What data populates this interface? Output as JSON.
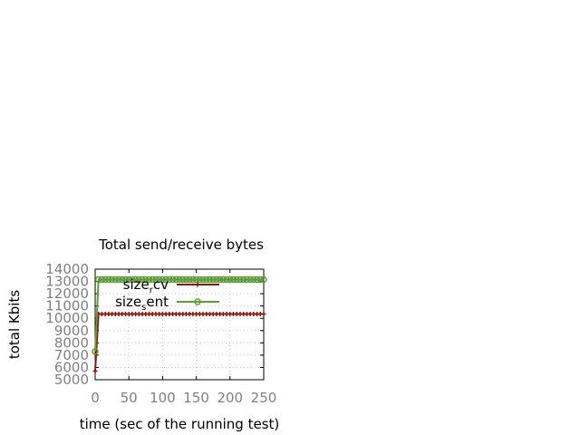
{
  "chart_data": {
    "type": "line",
    "title": "Total send/receive bytes",
    "xlabel": "time (sec of the running test)",
    "ylabel": "total Kbits",
    "xlim": [
      0,
      250
    ],
    "ylim": [
      5000,
      14000
    ],
    "xticks": [
      0,
      50,
      100,
      150,
      200,
      250
    ],
    "yticks": [
      5000,
      6000,
      7000,
      8000,
      9000,
      10000,
      11000,
      12000,
      13000,
      14000
    ],
    "grid": true,
    "legend_position": "top-right",
    "series": [
      {
        "name_main": "size",
        "name_sub": "r",
        "name_rest": "cv",
        "color": "#8b1a0e",
        "marker": "plus",
        "x": [
          0,
          5,
          10,
          15,
          20,
          25,
          30,
          35,
          40,
          45,
          50,
          55,
          60,
          65,
          70,
          75,
          80,
          85,
          90,
          95,
          100,
          105,
          110,
          115,
          120,
          125,
          130,
          135,
          140,
          145,
          150,
          155,
          160,
          165,
          170,
          175,
          180,
          185,
          190,
          195,
          200,
          205,
          210,
          215,
          220,
          225,
          230,
          235,
          240,
          245,
          250
        ],
        "y": [
          5700,
          10350,
          10350,
          10350,
          10350,
          10350,
          10350,
          10350,
          10350,
          10350,
          10350,
          10350,
          10350,
          10350,
          10350,
          10350,
          10350,
          10350,
          10350,
          10350,
          10350,
          10350,
          10350,
          10350,
          10350,
          10350,
          10350,
          10350,
          10350,
          10350,
          10350,
          10350,
          10350,
          10350,
          10350,
          10350,
          10350,
          10350,
          10350,
          10350,
          10350,
          10350,
          10350,
          10350,
          10350,
          10350,
          10350,
          10350,
          10350,
          10350,
          10350
        ]
      },
      {
        "name_main": "size",
        "name_sub": "s",
        "name_rest": "ent",
        "color": "#5e9c36",
        "marker": "circle",
        "x": [
          0,
          5,
          10,
          15,
          20,
          25,
          30,
          35,
          40,
          45,
          50,
          55,
          60,
          65,
          70,
          75,
          80,
          85,
          90,
          95,
          100,
          105,
          110,
          115,
          120,
          125,
          130,
          135,
          140,
          145,
          150,
          155,
          160,
          165,
          170,
          175,
          180,
          185,
          190,
          195,
          200,
          205,
          210,
          215,
          220,
          225,
          230,
          235,
          240,
          245,
          250
        ],
        "y": [
          7300,
          13150,
          13150,
          13150,
          13150,
          13150,
          13150,
          13150,
          13150,
          13150,
          13150,
          13150,
          13150,
          13150,
          13150,
          13150,
          13150,
          13150,
          13150,
          13150,
          13150,
          13150,
          13150,
          13150,
          13150,
          13150,
          13150,
          13150,
          13150,
          13150,
          13150,
          13150,
          13150,
          13150,
          13150,
          13150,
          13150,
          13150,
          13150,
          13150,
          13150,
          13150,
          13150,
          13150,
          13150,
          13150,
          13150,
          13150,
          13150,
          13150,
          13150
        ]
      }
    ]
  }
}
